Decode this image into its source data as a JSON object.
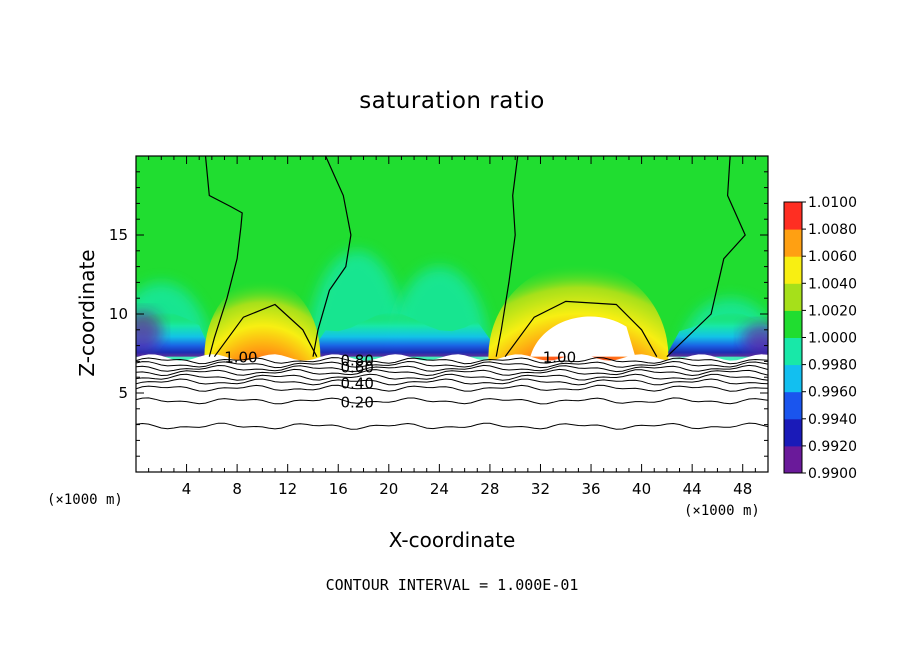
{
  "chart_data": {
    "type": "heatmap",
    "title": "saturation ratio",
    "xlabel": "X-coordinate",
    "ylabel": "Z-coordinate",
    "x_unit_label": "(×1000 m)",
    "y_unit_label": "(×1000 m)",
    "xlim": [
      0,
      50
    ],
    "ylim": [
      0,
      20
    ],
    "x_ticks": [
      4,
      8,
      12,
      16,
      20,
      24,
      28,
      32,
      36,
      40,
      44,
      48
    ],
    "y_ticks": [
      5,
      10,
      15
    ],
    "contour_interval_text": "CONTOUR INTERVAL = 1.000E-01",
    "colorbar": {
      "values": [
        0.99,
        0.992,
        0.994,
        0.996,
        0.998,
        1.0,
        1.002,
        1.004,
        1.006,
        1.008,
        1.01
      ],
      "labels": [
        "0.9900",
        "0.9920",
        "0.9940",
        "0.9960",
        "0.9980",
        "1.0000",
        "1.0020",
        "1.0040",
        "1.0060",
        "1.0080",
        "1.0100"
      ],
      "colors": [
        "#6a1a9a",
        "#1a1ab8",
        "#1a55ee",
        "#12bff0",
        "#18e8a8",
        "#20dd30",
        "#a6e01a",
        "#f8ef12",
        "#ffa012",
        "#ff2e22",
        "#f28a94"
      ]
    },
    "plumes": [
      {
        "x_center": 10,
        "z_top": 12.2,
        "peak": 1.007
      },
      {
        "x_center": 35,
        "z_top": 13.2,
        "peak": 1.0095
      }
    ],
    "contour_labels": [
      "1.00",
      "0.80",
      "0.60",
      "0.40",
      "0.20",
      "1.00"
    ],
    "grid": false
  }
}
